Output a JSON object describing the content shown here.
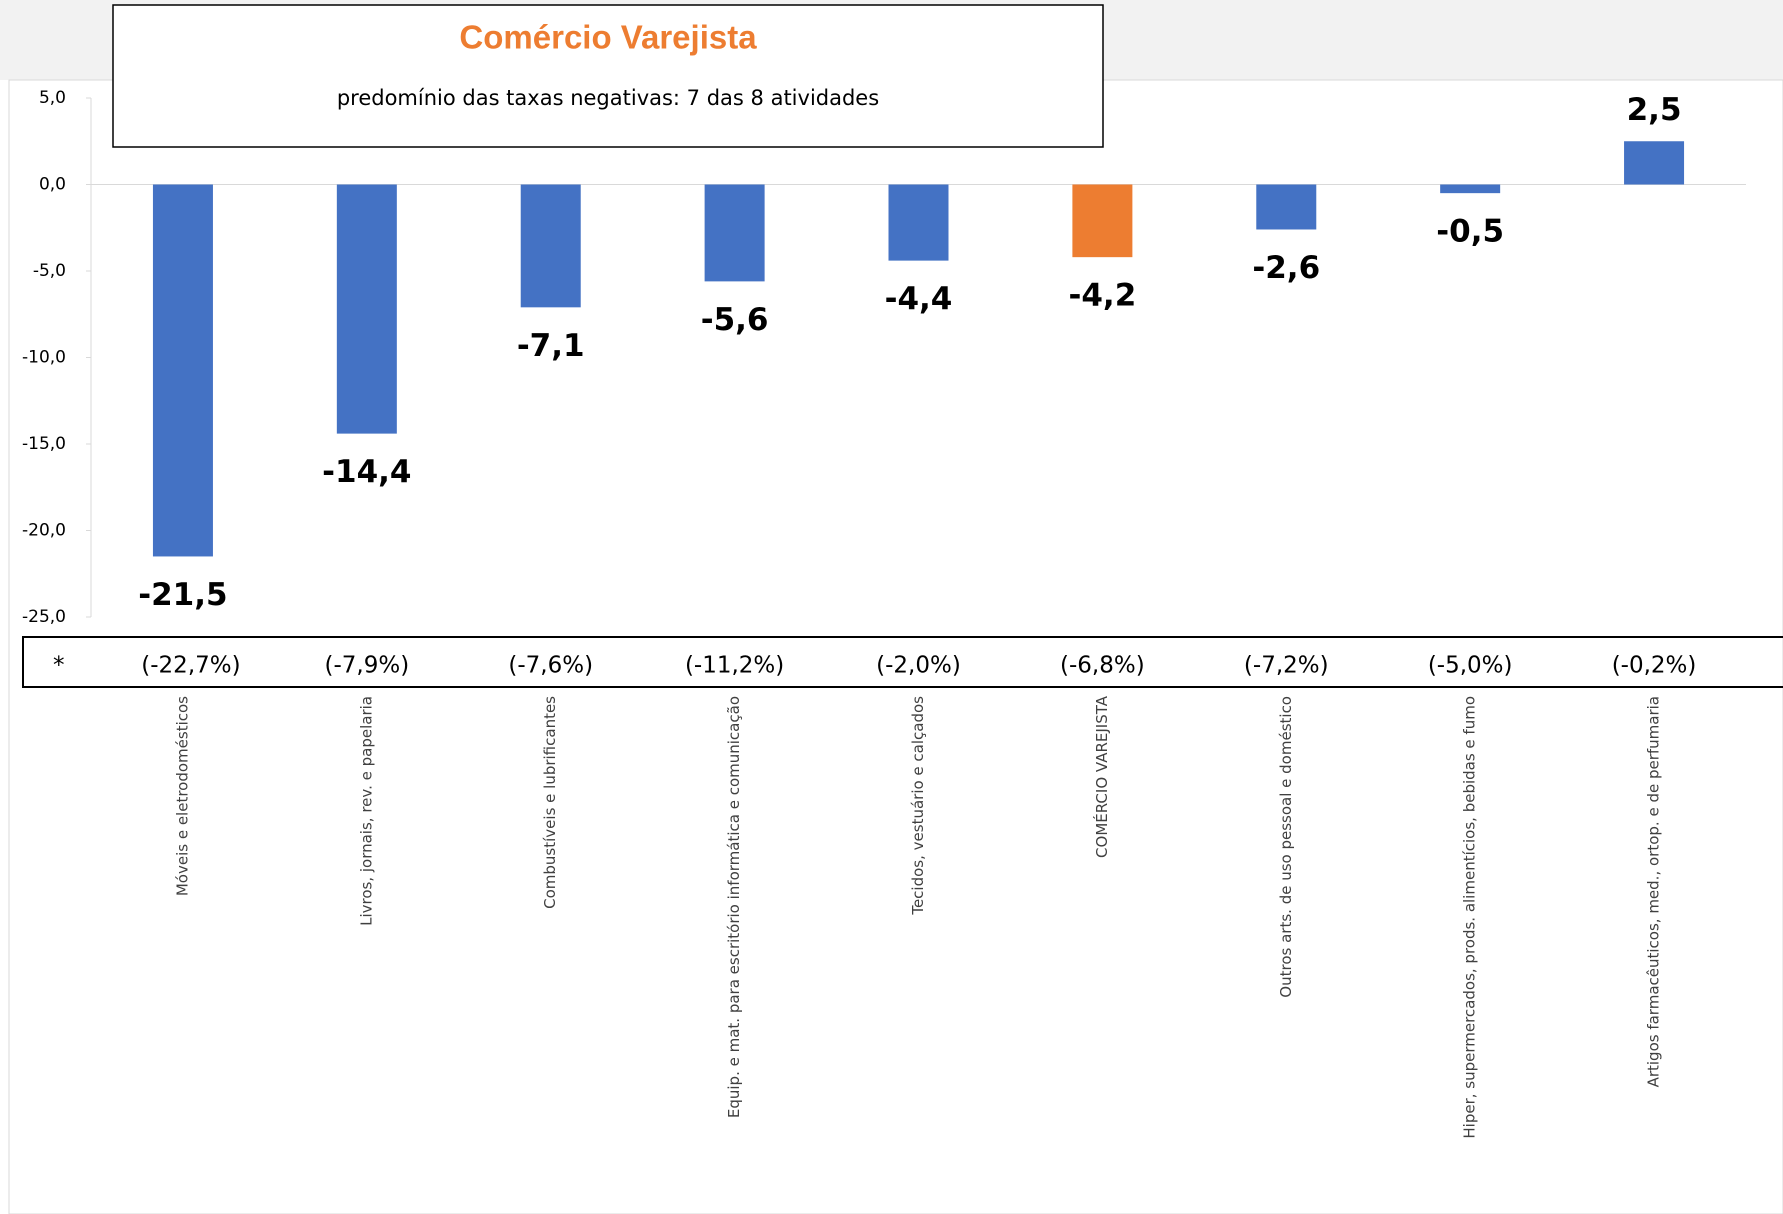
{
  "chart_data": {
    "type": "bar",
    "title": "Comércio Varejista",
    "subtitle": "predomínio das taxas negativas: 7 das 8 atividades",
    "categories": [
      "Móveis e eletrodomésticos",
      "Livros, jornais, rev. e papelaria",
      "Combustíveis e lubrificantes",
      "Equip. e mat. para escritório informática e comunicação",
      "Tecidos, vestuário e calçados",
      "COMÉRCIO VAREJISTA",
      "Outros arts. de uso pessoal e doméstico",
      "Hiper, supermercados, prods.  alimentícios, bebidas e fumo",
      "Artigos farmacêuticos, med., ortop. e de perfumaria"
    ],
    "values": [
      -21.5,
      -14.4,
      -7.1,
      -5.6,
      -4.4,
      -4.2,
      -2.6,
      -0.5,
      2.5
    ],
    "value_labels": [
      "-21,5",
      "-14,4",
      "-7,1",
      "-5,6",
      "-4,4",
      "-4,2",
      "-2,6",
      "-0,5",
      "2,5"
    ],
    "colors": [
      "#4472c4",
      "#4472c4",
      "#4472c4",
      "#4472c4",
      "#4472c4",
      "#ed7d31",
      "#4472c4",
      "#4472c4",
      "#4472c4"
    ],
    "annotation_marker": "*",
    "annotations": [
      "(-22,7%)",
      "(-7,9%)",
      "(-7,6%)",
      "(-11,2%)",
      "(-2,0%)",
      "(-6,8%)",
      "(-7,2%)",
      "(-5,0%)",
      "(-0,2%)"
    ],
    "ylim": [
      -25,
      5
    ],
    "yticks": [
      {
        "value": -25,
        "label": "-25,0"
      },
      {
        "value": -20,
        "label": "-20,0"
      },
      {
        "value": -15,
        "label": "-15,0"
      },
      {
        "value": -10,
        "label": "-10,0"
      },
      {
        "value": -5,
        "label": "-5,0"
      },
      {
        "value": 0,
        "label": "0,0"
      },
      {
        "value": 5,
        "label": "5,0"
      }
    ]
  }
}
